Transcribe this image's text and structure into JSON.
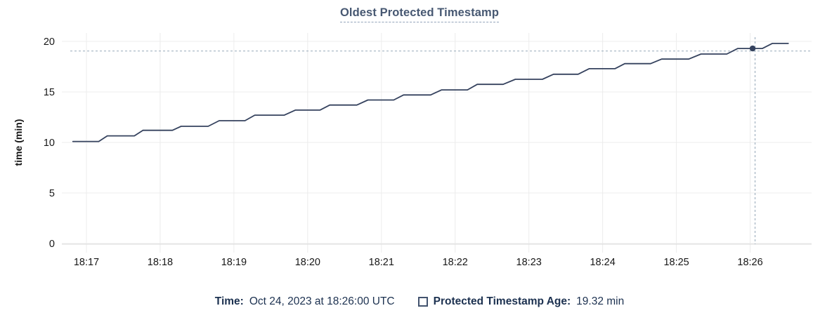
{
  "chart_data": {
    "type": "line",
    "title": "Oldest Protected Timestamp",
    "ylabel": "time (min)",
    "ylim": [
      0,
      20
    ],
    "y_ticks": [
      0,
      5,
      10,
      15,
      20
    ],
    "x_tick_labels": [
      "18:17",
      "18:18",
      "18:19",
      "18:20",
      "18:21",
      "18:22",
      "18:23",
      "18:24",
      "18:25",
      "18:26"
    ],
    "x_tick_sec": [
      60,
      120,
      180,
      240,
      300,
      360,
      420,
      480,
      540,
      600
    ],
    "xlim_sec": [
      40,
      650
    ],
    "grid": true,
    "legend_position": "bottom",
    "series": [
      {
        "name": "Protected Timestamp Age",
        "unit": "min",
        "points": [
          [
            49,
            10.1
          ],
          [
            70,
            10.1
          ],
          [
            77,
            10.65
          ],
          [
            99,
            10.65
          ],
          [
            106,
            11.2
          ],
          [
            130,
            11.2
          ],
          [
            137,
            11.6
          ],
          [
            159,
            11.6
          ],
          [
            168,
            12.15
          ],
          [
            189,
            12.15
          ],
          [
            197,
            12.7
          ],
          [
            221,
            12.7
          ],
          [
            230,
            13.2
          ],
          [
            250,
            13.2
          ],
          [
            258,
            13.7
          ],
          [
            280,
            13.7
          ],
          [
            289,
            14.2
          ],
          [
            310,
            14.2
          ],
          [
            318,
            14.7
          ],
          [
            340,
            14.7
          ],
          [
            349,
            15.2
          ],
          [
            370,
            15.2
          ],
          [
            378,
            15.75
          ],
          [
            399,
            15.75
          ],
          [
            409,
            16.25
          ],
          [
            431,
            16.25
          ],
          [
            440,
            16.75
          ],
          [
            460,
            16.75
          ],
          [
            469,
            17.3
          ],
          [
            490,
            17.3
          ],
          [
            498,
            17.8
          ],
          [
            519,
            17.8
          ],
          [
            528,
            18.25
          ],
          [
            550,
            18.25
          ],
          [
            560,
            18.75
          ],
          [
            581,
            18.75
          ],
          [
            590,
            19.3
          ],
          [
            610,
            19.3
          ],
          [
            618,
            19.8
          ],
          [
            631,
            19.8
          ]
        ]
      }
    ],
    "crosshair": {
      "time_sec": 604,
      "hline_value": 19.05,
      "point_sec": 602,
      "point_value": 19.3
    }
  },
  "legend": {
    "time_label": "Time:",
    "time_value": "Oct 24, 2023 at 18:26:00 UTC",
    "series_label": "Protected Timestamp Age:",
    "series_value": "19.32 min"
  },
  "colors": {
    "line": "#35425e",
    "title": "#475872",
    "title_underline": "#93a4ba",
    "legend_text": "#1c3150",
    "checkbox": "#42536e",
    "grid": "#ececec",
    "axis": "#dcdcdc",
    "tick_text": "#171717",
    "crosshair": "#a2b2c1"
  }
}
